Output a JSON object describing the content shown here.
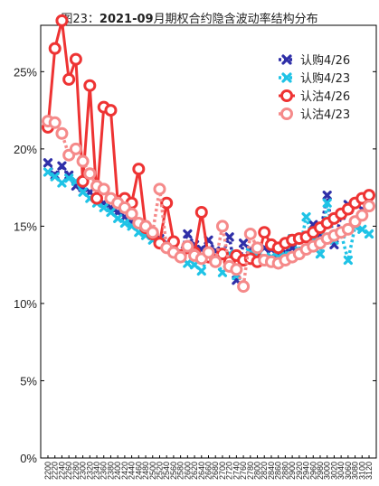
{
  "chart_data": {
    "type": "line",
    "title_prefix": "图23：",
    "title_bold": "2021-09",
    "title_suffix": "月期权合约隐含波动率结构分布",
    "ylim": [
      0,
      0.28
    ],
    "yticks": [
      "0%",
      "5%",
      "10%",
      "15%",
      "20%",
      "25%"
    ],
    "ytick_values": [
      0,
      0.05,
      0.1,
      0.15,
      0.2,
      0.25
    ],
    "grid": false,
    "legend_position": "top-right",
    "x": [
      "2200",
      "2220",
      "2240",
      "2260",
      "2280",
      "2300",
      "2320",
      "2340",
      "2360",
      "2380",
      "2400",
      "2420",
      "2440",
      "2460",
      "2480",
      "2500",
      "2520",
      "2540",
      "2560",
      "2580",
      "2600",
      "2620",
      "2640",
      "2660",
      "2680",
      "2700",
      "2720",
      "2740",
      "2760",
      "2780",
      "2800",
      "2820",
      "2840",
      "2860",
      "2880",
      "2900",
      "2920",
      "2940",
      "2960",
      "2980",
      "3000",
      "3020",
      "3040",
      "3060",
      "3080",
      "3100",
      "3120"
    ],
    "xtick_labels": [
      "2200",
      "2220",
      "2240",
      "2260",
      "2280",
      "2300",
      "2320",
      "2340",
      "2360",
      "2380",
      "2400",
      "2420",
      "2440",
      "2460",
      "2480",
      "2500",
      "2520",
      "2540",
      "2560",
      "2580",
      "2600",
      "2620",
      "2640",
      "2660",
      "2680",
      "2700",
      "2720",
      "2740",
      "2760",
      "2780",
      "2800",
      "2820",
      "2840",
      "2860",
      "2880",
      "2900",
      "2920",
      "2940",
      "2960",
      "2980",
      "3000",
      "3020",
      "3040",
      "3060",
      "3080",
      "3100",
      "3120"
    ],
    "series": [
      {
        "name": "认购4/26",
        "color": "#2f2fa8",
        "line": "dotted",
        "marker": "x",
        "values": [
          0.191,
          0.183,
          0.189,
          0.183,
          0.176,
          0.175,
          0.172,
          0.168,
          0.165,
          0.162,
          0.159,
          0.156,
          0.153,
          0.15,
          0.147,
          0.144,
          0.142,
          0.139,
          0.136,
          0.133,
          0.145,
          0.138,
          0.135,
          0.141,
          0.134,
          0.132,
          0.143,
          0.115,
          0.139,
          0.135,
          0.133,
          0.136,
          0.135,
          0.132,
          0.133,
          0.136,
          0.134,
          0.135,
          0.151,
          0.145,
          0.17,
          0.138,
          0.157,
          0.164,
          0.151,
          0.161,
          0.163
        ]
      },
      {
        "name": "认购4/23",
        "color": "#1fc3e6",
        "line": "dotted",
        "marker": "x",
        "values": [
          0.185,
          0.182,
          0.178,
          0.181,
          0.179,
          0.172,
          0.168,
          0.165,
          0.162,
          0.159,
          0.155,
          0.152,
          0.15,
          0.146,
          0.144,
          0.141,
          0.14,
          0.136,
          0.133,
          0.13,
          0.126,
          0.125,
          0.121,
          0.13,
          0.128,
          0.12,
          0.132,
          0.118,
          0.128,
          0.133,
          0.131,
          0.129,
          0.13,
          0.13,
          0.131,
          0.142,
          0.134,
          0.156,
          0.141,
          0.132,
          0.165,
          0.141,
          0.145,
          0.128,
          0.15,
          0.148,
          0.145
        ]
      },
      {
        "name": "认沽4/26",
        "color": "#ee3333",
        "line": "solid",
        "marker": "o",
        "values": [
          0.214,
          0.265,
          0.283,
          0.245,
          0.258,
          0.179,
          0.241,
          0.168,
          0.227,
          0.225,
          0.166,
          0.168,
          0.165,
          0.187,
          0.149,
          0.145,
          0.139,
          0.165,
          0.14,
          0.131,
          0.136,
          0.133,
          0.159,
          0.13,
          0.128,
          0.132,
          0.127,
          0.131,
          0.128,
          0.129,
          0.127,
          0.146,
          0.138,
          0.136,
          0.139,
          0.141,
          0.142,
          0.143,
          0.146,
          0.149,
          0.152,
          0.155,
          0.158,
          0.161,
          0.165,
          0.168,
          0.17
        ]
      },
      {
        "name": "认沽4/23",
        "color": "#f58a8a",
        "line": "dotted",
        "marker": "o",
        "values": [
          0.218,
          0.217,
          0.21,
          0.196,
          0.2,
          0.192,
          0.184,
          0.176,
          0.174,
          0.168,
          0.165,
          0.162,
          0.158,
          0.152,
          0.15,
          0.146,
          0.174,
          0.136,
          0.133,
          0.13,
          0.137,
          0.131,
          0.129,
          0.133,
          0.127,
          0.15,
          0.124,
          0.122,
          0.111,
          0.145,
          0.136,
          0.128,
          0.127,
          0.126,
          0.128,
          0.13,
          0.132,
          0.135,
          0.137,
          0.139,
          0.142,
          0.144,
          0.146,
          0.148,
          0.153,
          0.157,
          0.163
        ]
      }
    ]
  }
}
